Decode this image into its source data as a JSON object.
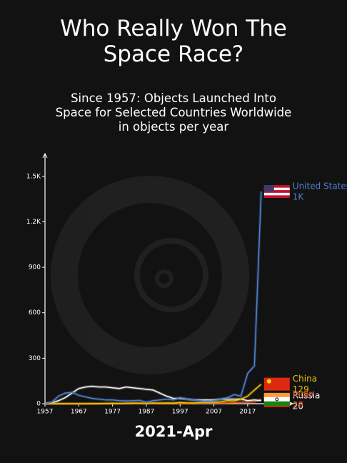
{
  "chart_data": {
    "type": "line",
    "title": "Who Really Won The Space Race?",
    "subtitle": "Since 1957: Objects Launched Into Space for Selected Countries Worldwide in objects per year",
    "date_label": "2021-Apr",
    "x": [
      1957,
      1959,
      1961,
      1963,
      1965,
      1967,
      1969,
      1971,
      1973,
      1975,
      1977,
      1979,
      1981,
      1983,
      1985,
      1987,
      1989,
      1991,
      1993,
      1995,
      1997,
      1999,
      2001,
      2003,
      2005,
      2007,
      2009,
      2011,
      2013,
      2015,
      2017,
      2019,
      2021
    ],
    "xlim": [
      1957,
      2024
    ],
    "xticks": [
      1957,
      1967,
      1977,
      1987,
      1997,
      2007,
      2017
    ],
    "ylim": [
      0,
      1650
    ],
    "yticks": [
      0,
      300,
      600,
      {
        "value": 900,
        "label": "900"
      },
      {
        "value": 1200,
        "label": "1.2K"
      },
      {
        "value": 1500,
        "label": "1.5K"
      }
    ],
    "series": [
      {
        "name": "United States",
        "color": "#4f7fd1",
        "values": [
          1,
          10,
          50,
          70,
          75,
          55,
          45,
          35,
          30,
          25,
          25,
          20,
          18,
          20,
          22,
          10,
          20,
          25,
          30,
          25,
          40,
          30,
          25,
          20,
          15,
          20,
          30,
          40,
          60,
          50,
          200,
          250,
          1400
        ],
        "value_labels": {
          "32": "1K"
        }
      },
      {
        "name": "China",
        "color": "#e8c400",
        "values": [
          0,
          0,
          0,
          0,
          0,
          0,
          0,
          1,
          1,
          2,
          3,
          2,
          3,
          4,
          4,
          3,
          5,
          4,
          5,
          4,
          8,
          6,
          5,
          7,
          8,
          10,
          12,
          20,
          18,
          30,
          50,
          90,
          129
        ]
      },
      {
        "name": "Russia",
        "color": "#f2f2f2",
        "values": [
          2,
          5,
          20,
          40,
          70,
          100,
          110,
          115,
          110,
          110,
          105,
          100,
          110,
          105,
          100,
          95,
          90,
          70,
          50,
          35,
          35,
          30,
          25,
          25,
          25,
          25,
          30,
          30,
          30,
          30,
          20,
          25,
          20
        ]
      },
      {
        "name": "India",
        "color": "#e8501a",
        "values": [
          0,
          0,
          0,
          0,
          0,
          0,
          0,
          0,
          0,
          1,
          0,
          1,
          2,
          2,
          1,
          2,
          1,
          2,
          2,
          3,
          3,
          2,
          3,
          3,
          4,
          5,
          4,
          5,
          6,
          8,
          10,
          12,
          29
        ]
      }
    ]
  }
}
